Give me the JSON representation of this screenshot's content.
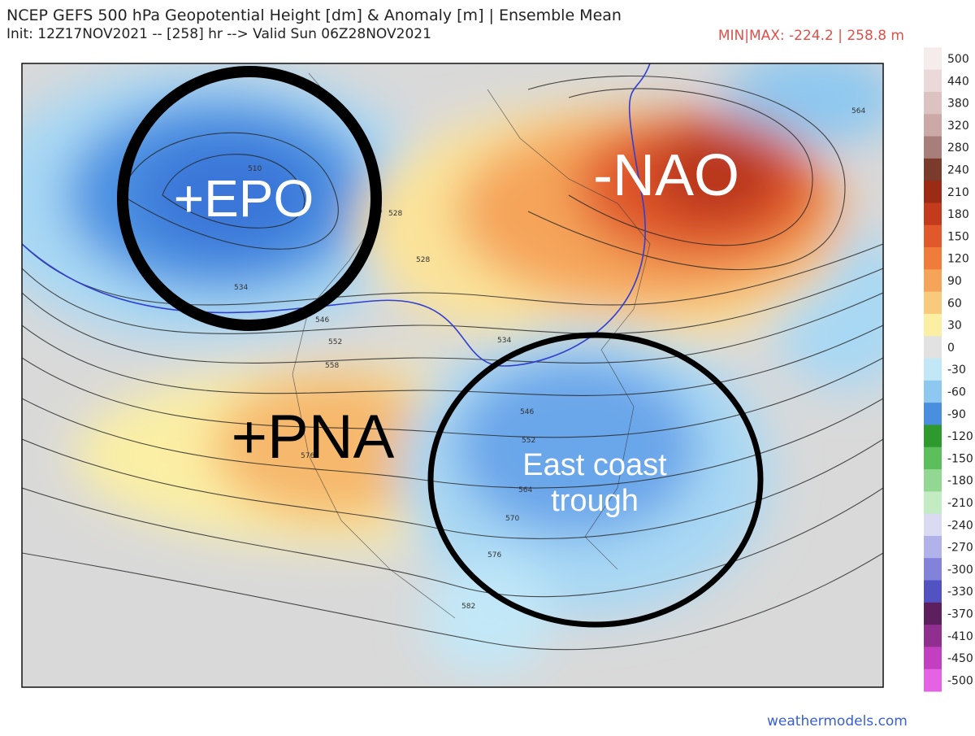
{
  "header": {
    "title": "NCEP GEFS 500 hPa Geopotential Height [dm] & Anomaly [m] | Ensemble Mean",
    "subtitle": "Init: 12Z17NOV2021 -- [258] hr --> Valid Sun 06Z28NOV2021",
    "minmax": "MIN|MAX: -224.2 | 258.8 m"
  },
  "annotations": {
    "epo": "+EPO",
    "nao": "-NAO",
    "pna": "+PNA",
    "trough": "East coast trough"
  },
  "contour_labels": [
    "510",
    "528",
    "528",
    "534",
    "546",
    "552",
    "558",
    "576",
    "534",
    "564",
    "546",
    "552",
    "564",
    "570",
    "576",
    "582"
  ],
  "colorbar": {
    "ticks": [
      500,
      440,
      380,
      320,
      280,
      240,
      210,
      180,
      150,
      120,
      90,
      60,
      30,
      0,
      -30,
      -60,
      -90,
      -120,
      -150,
      -180,
      -210,
      -240,
      -270,
      -300,
      -330,
      -370,
      -410,
      -450,
      -500
    ],
    "colors": [
      "#f6ecec",
      "#ead9d8",
      "#dcc3c1",
      "#cba9a6",
      "#a87e7a",
      "#7a3b2c",
      "#9c2b15",
      "#c33a1c",
      "#e1582b",
      "#f07c3c",
      "#f5a45a",
      "#f9ca7c",
      "#fbefa4",
      "#e2e2e2",
      "#c2e8f8",
      "#8ec8f0",
      "#4a8ee0",
      "#2e9a2e",
      "#5cbf5c",
      "#92d792",
      "#c4ecc4",
      "#dadaf2",
      "#b2b2ea",
      "#8282da",
      "#5252c2",
      "#5e1f5e",
      "#902f90",
      "#c23fc2",
      "#e462e4"
    ]
  },
  "footer": {
    "source": "weathermodels.com"
  }
}
